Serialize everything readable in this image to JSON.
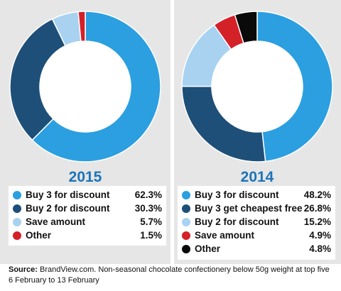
{
  "chart_data": [
    {
      "type": "pie",
      "title": "2015",
      "legend": "below",
      "series": [
        {
          "name": "Buy 3 for discount",
          "value": 62.3,
          "label": "62.3%",
          "color": "#2b9fe0"
        },
        {
          "name": "Buy 2 for discount",
          "value": 30.3,
          "label": "30.3%",
          "color": "#1e4f78"
        },
        {
          "name": "Save amount",
          "value": 5.7,
          "label": "5.7%",
          "color": "#a9d2f1"
        },
        {
          "name": "Other",
          "value": 1.5,
          "label": "1.5%",
          "color": "#d42027"
        }
      ]
    },
    {
      "type": "pie",
      "title": "2014",
      "legend": "below",
      "series": [
        {
          "name": "Buy 3 for discount",
          "value": 48.2,
          "label": "48.2%",
          "color": "#2b9fe0"
        },
        {
          "name": "Buy 3 get cheapest free",
          "value": 26.8,
          "label": "26.8%",
          "color": "#1e4f78"
        },
        {
          "name": "Buy 2 for discount",
          "value": 15.2,
          "label": "15.2%",
          "color": "#a9d2f1"
        },
        {
          "name": "Save amount",
          "value": 4.9,
          "label": "4.9%",
          "color": "#d42027"
        },
        {
          "name": "Other",
          "value": 4.8,
          "label": "4.8%",
          "color": "#0a0a0a"
        }
      ]
    }
  ],
  "source": {
    "label": "Source:",
    "text": "BrandView.com. Non-seasonal chocolate confectionery below 50g weight at top five",
    "line2": "6 February to 13 February"
  }
}
